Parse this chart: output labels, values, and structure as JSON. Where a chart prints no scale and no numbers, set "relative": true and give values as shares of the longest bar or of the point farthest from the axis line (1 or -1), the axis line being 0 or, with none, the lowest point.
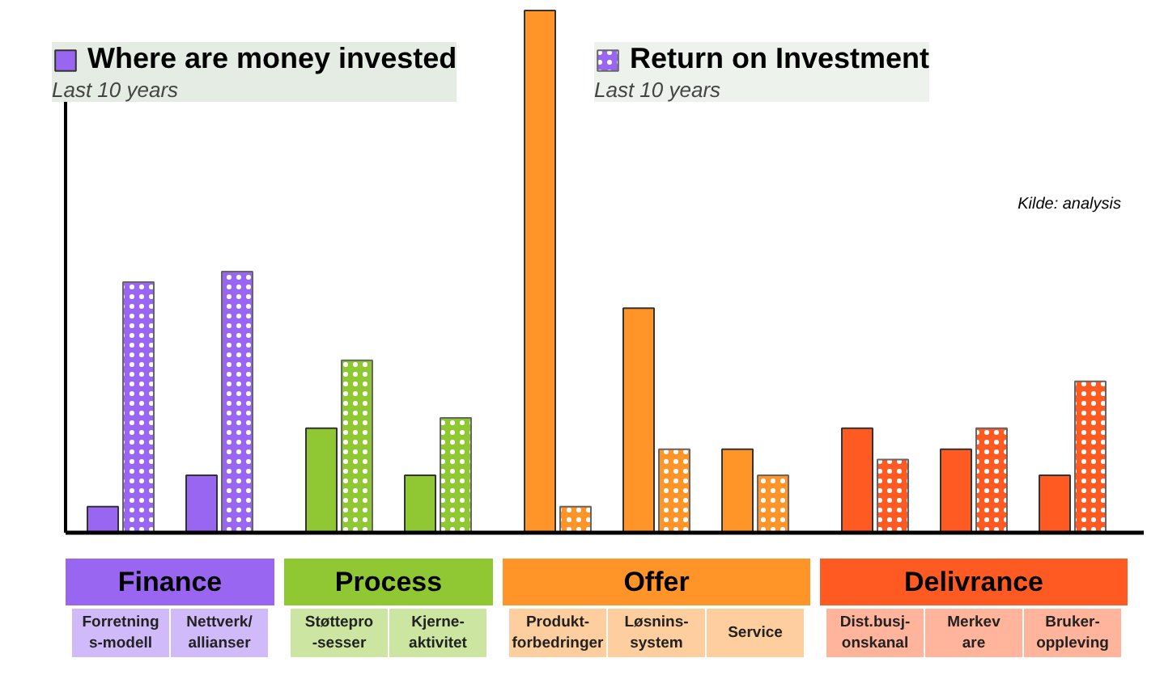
{
  "chart_data": {
    "type": "bar",
    "relative": true,
    "categories": [
      "Forretning\ns-modell",
      "Nettverk/\nallianser",
      "Støttepro\n-sesser",
      "Kjerne-\naktivitet",
      "Produkt-\nforbedringer",
      "Løsnins-\nsystem",
      "Service",
      "Dist.busj-\nonskanal",
      "Merkev\nare",
      "Bruker-\noppleving"
    ],
    "series": [
      {
        "name": "Where are money invested",
        "colors": [
          "#9966f2",
          "#9966f2",
          "#8fc832",
          "#8fc832",
          "#ff9428",
          "#ff9428",
          "#ff9428",
          "#ff5a22",
          "#ff5a22",
          "#ff5a22"
        ],
        "values": [
          0.05,
          0.11,
          0.2,
          0.11,
          1,
          0.43,
          0.16,
          0.2,
          0.16,
          0.11
        ]
      },
      {
        "name": "Return on Investment",
        "colors": [
          "#9966f2",
          "#9966f2",
          "#8fc832",
          "#8fc832",
          "#ff9428",
          "#ff9428",
          "#ff9428",
          "#ff5a22",
          "#ff5a22",
          "#ff5a22"
        ],
        "values": [
          0.48,
          0.5,
          0.33,
          0.22,
          0.05,
          0.16,
          0.11,
          0.14,
          0.2,
          0.29
        ]
      }
    ],
    "legend": "top",
    "annotations": [
      "Last 10 years",
      "Last 10 years",
      "Kilde: analysis",
      "Finance",
      "Process",
      "Offer",
      "Delivrance"
    ]
  }
}
